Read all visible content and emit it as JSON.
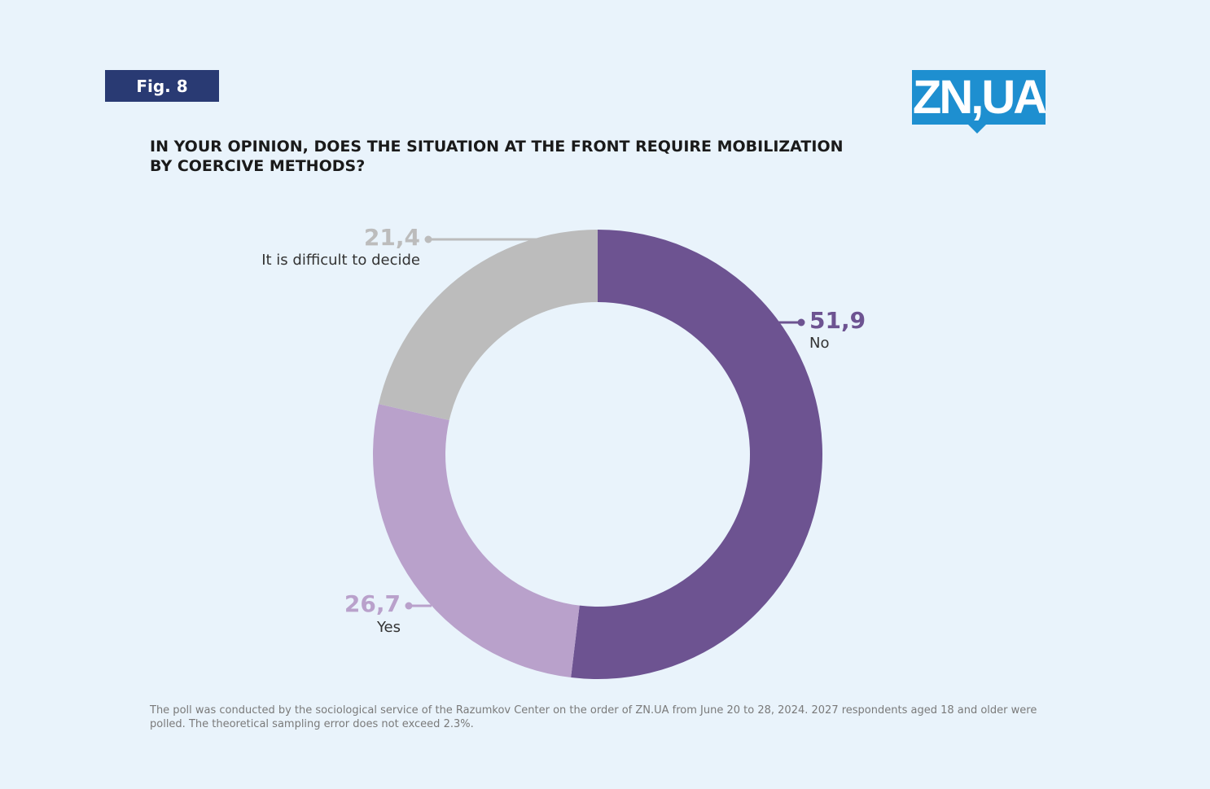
{
  "figure_label": "Fig. 8",
  "logo_text": "ZN,UA",
  "title": "IN YOUR OPINION, DOES THE SITUATION AT THE FRONT REQUIRE MOBILIZATION BY COERCIVE METHODS?",
  "footnote": "The poll was conducted by the sociological service of the Razumkov Center on the order of ZN.UA from June 20 to 28, 2024. 2027 respondents aged 18 and older were polled. The theoretical sampling error does not exceed 2.3%.",
  "colors": {
    "background": "#e9f3fb",
    "badge": "#293a73",
    "logo": "#1e8fd0"
  },
  "chart_data": {
    "type": "pie",
    "donut": true,
    "slices": [
      {
        "label": "No",
        "value": 51.9,
        "value_label": "51,9",
        "color": "#6d5391"
      },
      {
        "label": "Yes",
        "value": 26.7,
        "value_label": "26,7",
        "color": "#b9a1cb"
      },
      {
        "label": "It is difficult to decide",
        "value": 21.4,
        "value_label": "21,4",
        "color": "#bcbcbc"
      }
    ]
  }
}
